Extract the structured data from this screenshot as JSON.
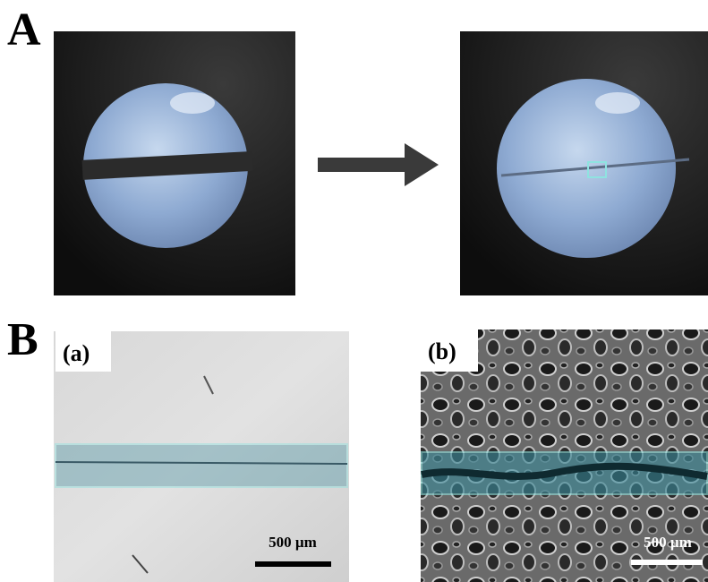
{
  "panel_a": {
    "label": "A"
  },
  "panel_b": {
    "label": "B",
    "subpanels": [
      {
        "label": "(a)",
        "scale_bar": "500 µm"
      },
      {
        "label": "(b)",
        "scale_bar": "500 µm"
      }
    ]
  }
}
